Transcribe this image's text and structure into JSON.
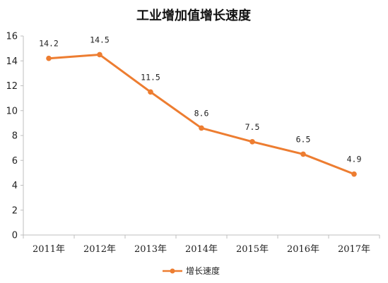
{
  "chart_data": {
    "type": "line",
    "title": "工业增加值增长速度",
    "categories": [
      "2011年",
      "2012年",
      "2013年",
      "2014年",
      "2015年",
      "2016年",
      "2017年"
    ],
    "series": [
      {
        "name": "增长速度",
        "values": [
          14.2,
          14.5,
          11.5,
          8.6,
          7.5,
          6.5,
          4.9
        ],
        "data_labels": [
          "14.2",
          "14.5",
          "11.5",
          "8.6",
          "7.5",
          "6.5",
          "4.9"
        ],
        "color": "#ED7D31"
      }
    ],
    "y_ticks": [
      "0",
      "2",
      "4",
      "6",
      "8",
      "10",
      "12",
      "14",
      "16"
    ],
    "ylim": [
      0,
      16
    ],
    "grid": false,
    "legend_position": "bottom"
  }
}
